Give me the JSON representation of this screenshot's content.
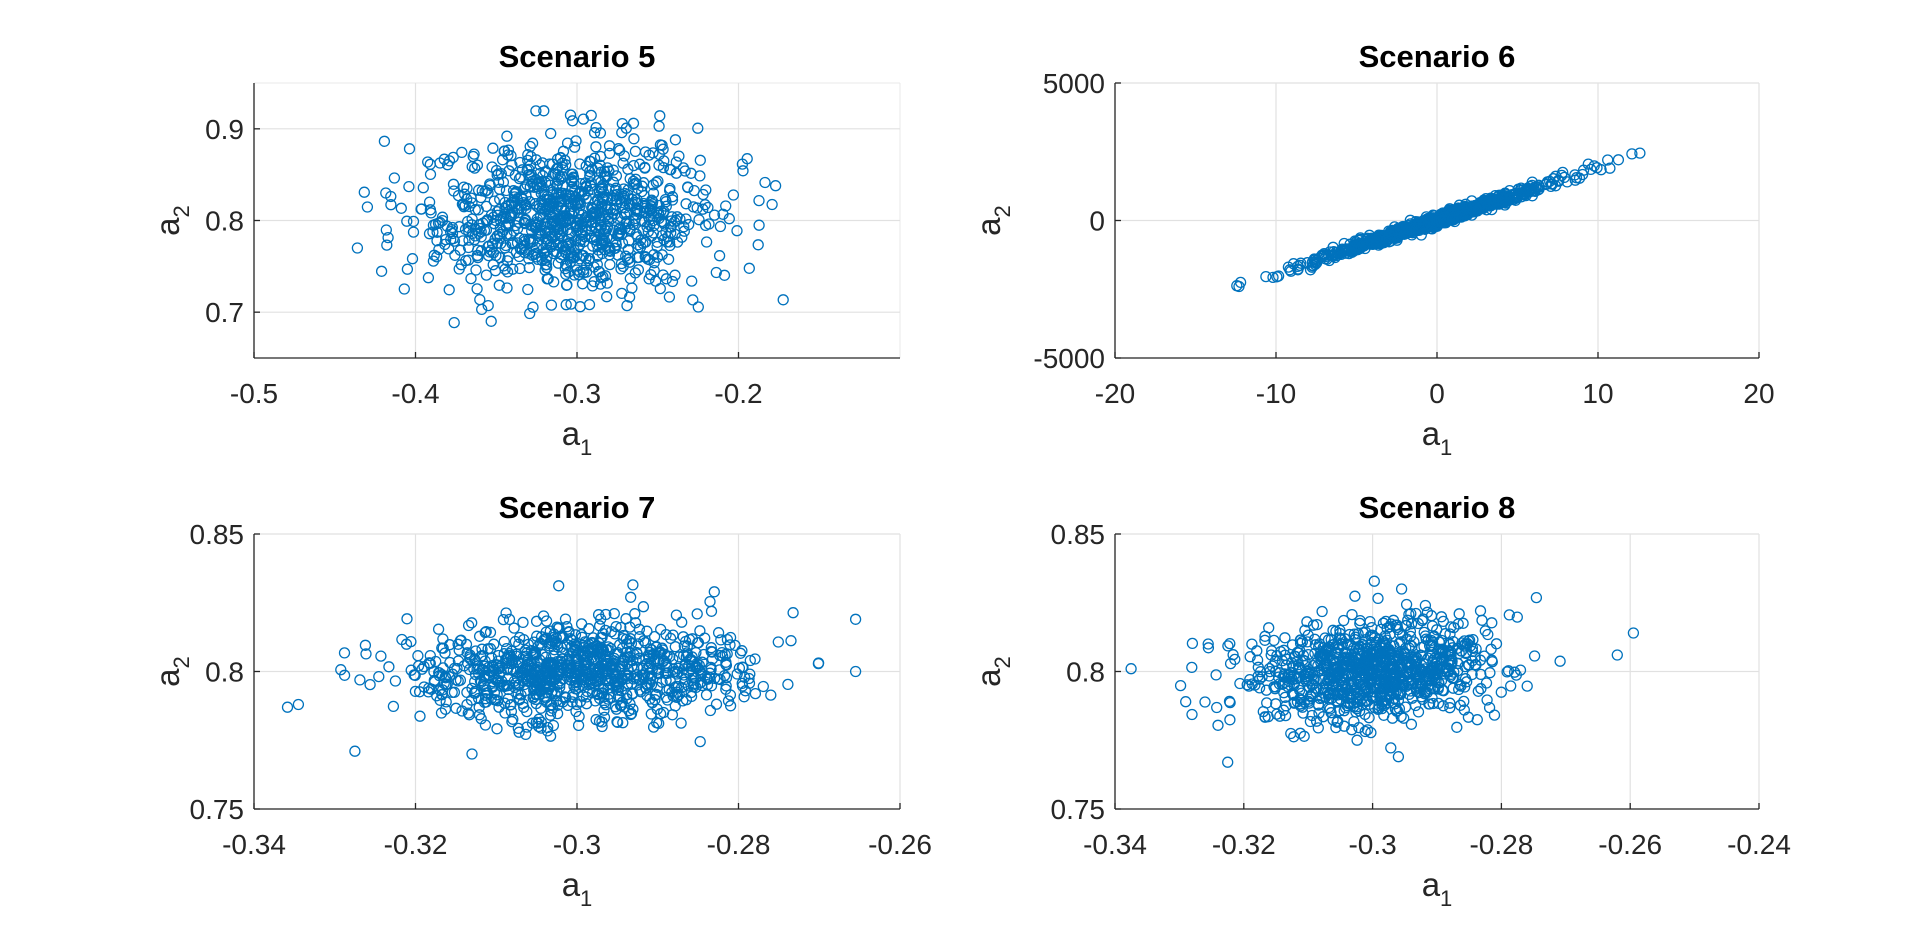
{
  "figure": {
    "background": "#ffffff",
    "marker_color": "#0072BD",
    "marker": "open-circle"
  },
  "chart_data": [
    {
      "type": "scatter",
      "title": "Scenario 5",
      "xlabel": "a",
      "xlabel_sub": "1",
      "ylabel": "a",
      "ylabel_sub": "2",
      "xlim": [
        -0.5,
        -0.1
      ],
      "ylim": [
        0.65,
        0.95
      ],
      "xticks": [
        -0.5,
        -0.4,
        -0.3,
        -0.2
      ],
      "yticks": [
        0.7,
        0.8,
        0.9
      ],
      "xtick_labels": [
        "-0.5",
        "-0.4",
        "-0.3",
        "-0.2"
      ],
      "ytick_labels": [
        "0.7",
        "0.8",
        "0.9"
      ],
      "grid": true,
      "n_points": 1000,
      "series": [
        {
          "name": "samples",
          "mean": [
            -0.305,
            0.803
          ],
          "std": [
            0.045,
            0.04
          ],
          "corr": 0.0,
          "seed": 5
        }
      ],
      "highlight_points": [
        {
          "x": -0.304,
          "y": 0.915
        },
        {
          "x": -0.265,
          "y": 0.906
        },
        {
          "x": -0.436,
          "y": 0.77
        },
        {
          "x": -0.177,
          "y": 0.838
        },
        {
          "x": -0.359,
          "y": 0.703
        },
        {
          "x": -0.298,
          "y": 0.706
        }
      ]
    },
    {
      "type": "scatter",
      "title": "Scenario 6",
      "xlabel": "a",
      "xlabel_sub": "1",
      "ylabel": "a",
      "ylabel_sub": "2",
      "xlim": [
        -20,
        20
      ],
      "ylim": [
        -5000,
        5000
      ],
      "xticks": [
        -20,
        -10,
        0,
        10,
        20
      ],
      "yticks": [
        -5000,
        0,
        5000
      ],
      "xtick_labels": [
        "-20",
        "-10",
        "0",
        "10",
        "20"
      ],
      "ytick_labels": [
        "-5000",
        "0",
        "5000"
      ],
      "grid": true,
      "n_points": 1000,
      "series": [
        {
          "name": "samples",
          "mean": [
            0.0,
            0.0
          ],
          "std": [
            3.6,
            700
          ],
          "corr": 0.99,
          "seed": 6
        }
      ],
      "highlight_points": [
        {
          "x": -12.3,
          "y": -2400
        },
        {
          "x": -12.2,
          "y": -2250
        },
        {
          "x": 12.6,
          "y": 2450
        },
        {
          "x": 10.6,
          "y": 2200
        },
        {
          "x": 9.4,
          "y": 2050
        }
      ]
    },
    {
      "type": "scatter",
      "title": "Scenario 7",
      "xlabel": "a",
      "xlabel_sub": "1",
      "ylabel": "a",
      "ylabel_sub": "2",
      "xlim": [
        -0.34,
        -0.26
      ],
      "ylim": [
        0.75,
        0.85
      ],
      "xticks": [
        -0.34,
        -0.32,
        -0.3,
        -0.28,
        -0.26
      ],
      "yticks": [
        0.75,
        0.8,
        0.85
      ],
      "xtick_labels": [
        "-0.34",
        "-0.32",
        "-0.3",
        "-0.28",
        "-0.26"
      ],
      "ytick_labels": [
        "0.75",
        "0.8",
        "0.85"
      ],
      "grid": true,
      "n_points": 1000,
      "series": [
        {
          "name": "samples",
          "mean": [
            -0.3,
            0.8
          ],
          "std": [
            0.0105,
            0.0085
          ],
          "corr": 0.1,
          "seed": 7
        }
      ],
      "highlight_points": [
        {
          "x": -0.3345,
          "y": 0.788
        },
        {
          "x": -0.2655,
          "y": 0.819
        },
        {
          "x": -0.283,
          "y": 0.829
        },
        {
          "x": -0.3275,
          "y": 0.771
        },
        {
          "x": -0.313,
          "y": 0.77
        },
        {
          "x": -0.2655,
          "y": 0.8
        }
      ]
    },
    {
      "type": "scatter",
      "title": "Scenario 8",
      "xlabel": "a",
      "xlabel_sub": "1",
      "ylabel": "a",
      "ylabel_sub": "2",
      "xlim": [
        -0.34,
        -0.24
      ],
      "ylim": [
        0.75,
        0.85
      ],
      "xticks": [
        -0.34,
        -0.32,
        -0.3,
        -0.28,
        -0.26,
        -0.24
      ],
      "yticks": [
        0.75,
        0.8,
        0.85
      ],
      "xtick_labels": [
        "-0.34",
        "-0.32",
        "-0.3",
        "-0.28",
        "-0.26",
        "-0.24"
      ],
      "ytick_labels": [
        "0.75",
        "0.8",
        "0.85"
      ],
      "grid": true,
      "n_points": 1000,
      "series": [
        {
          "name": "samples",
          "mean": [
            -0.3,
            0.8
          ],
          "std": [
            0.0095,
            0.009
          ],
          "corr": 0.15,
          "seed": 8
        }
      ],
      "highlight_points": [
        {
          "x": -0.3375,
          "y": 0.801
        },
        {
          "x": -0.2595,
          "y": 0.814
        },
        {
          "x": -0.262,
          "y": 0.806
        },
        {
          "x": -0.3225,
          "y": 0.767
        },
        {
          "x": -0.296,
          "y": 0.769
        },
        {
          "x": -0.2955,
          "y": 0.83
        }
      ]
    }
  ]
}
